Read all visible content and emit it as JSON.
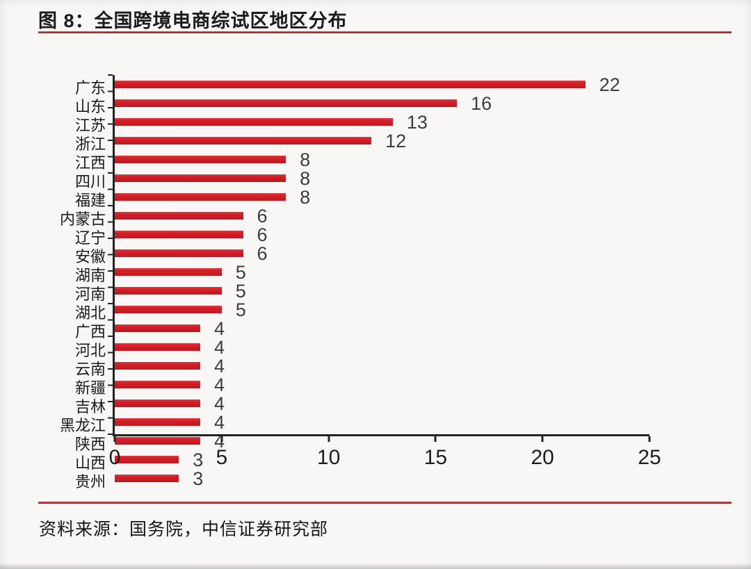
{
  "header": {
    "title": "图 8：全国跨境电商综试区地区分布"
  },
  "footer": {
    "source": "资料来源：国务院，中信证券研究部"
  },
  "colors": {
    "bar": "#d2202a",
    "rule": "#8f2b26",
    "axis": "#222222"
  },
  "chart_data": {
    "type": "bar",
    "orientation": "horizontal",
    "title": "全国跨境电商综试区地区分布",
    "categories": [
      "广东",
      "山东",
      "江苏",
      "浙江",
      "江西",
      "四川",
      "福建",
      "内蒙古",
      "辽宁",
      "安徽",
      "湖南",
      "河南",
      "湖北",
      "广西",
      "河北",
      "云南",
      "新疆",
      "吉林",
      "黑龙江",
      "陕西",
      "山西",
      "贵州"
    ],
    "values": [
      22,
      16,
      13,
      12,
      8,
      8,
      8,
      6,
      6,
      6,
      5,
      5,
      5,
      4,
      4,
      4,
      4,
      4,
      4,
      4,
      3,
      3
    ],
    "xlabel": "",
    "ylabel": "",
    "xlim": [
      0,
      25
    ],
    "x_ticks": [
      "0",
      "5",
      "10",
      "15",
      "20",
      "25"
    ],
    "grid": false,
    "legend": "none",
    "value_labels": "outside-end"
  }
}
